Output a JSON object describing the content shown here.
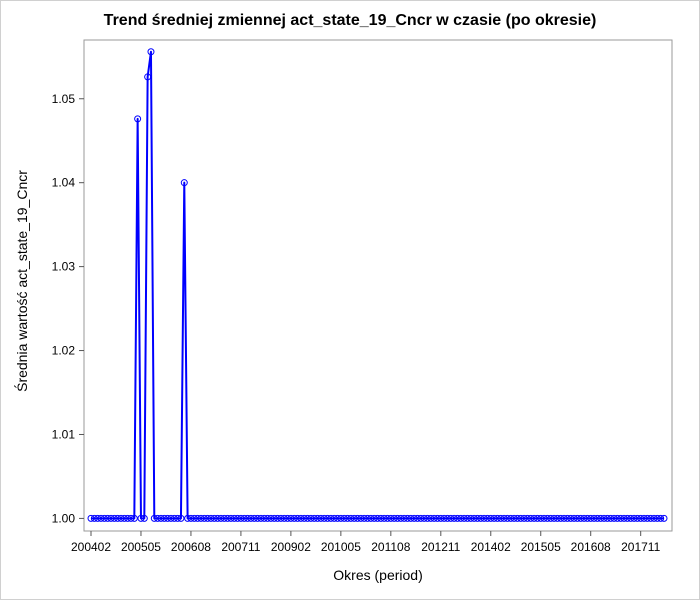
{
  "chart_data": {
    "type": "line",
    "title": "Trend średniej zmiennej act_state_19_Cncr w czasie (po okresie)",
    "xlabel": "Okres (period)",
    "ylabel": "Średnia wartość act_state_19_Cncr",
    "ylim": [
      0.9985,
      1.057
    ],
    "yticks": [
      "1.00",
      "1.01",
      "1.02",
      "1.03",
      "1.04",
      "1.05"
    ],
    "xticks": [
      "200402",
      "200505",
      "200608",
      "200711",
      "200902",
      "201005",
      "201108",
      "201211",
      "201402",
      "201505",
      "201608",
      "201711"
    ],
    "x_start": "200402",
    "x_end": "201806",
    "grid": false,
    "series": [
      {
        "color": "#0000ff",
        "marker": "circle",
        "points": [
          {
            "x": "200402",
            "y": 1.0
          },
          {
            "x": "200503",
            "y": 1.0
          },
          {
            "x": "200504",
            "y": 1.0476
          },
          {
            "x": "200505",
            "y": 1.0
          },
          {
            "x": "200506",
            "y": 1.0
          },
          {
            "x": "200507",
            "y": 1.0526
          },
          {
            "x": "200508",
            "y": 1.0556
          },
          {
            "x": "200509",
            "y": 1.0
          },
          {
            "x": "200605",
            "y": 1.0
          },
          {
            "x": "200606",
            "y": 1.04
          },
          {
            "x": "200607",
            "y": 1.0
          },
          {
            "x": "201806",
            "y": 1.0
          }
        ]
      }
    ]
  }
}
